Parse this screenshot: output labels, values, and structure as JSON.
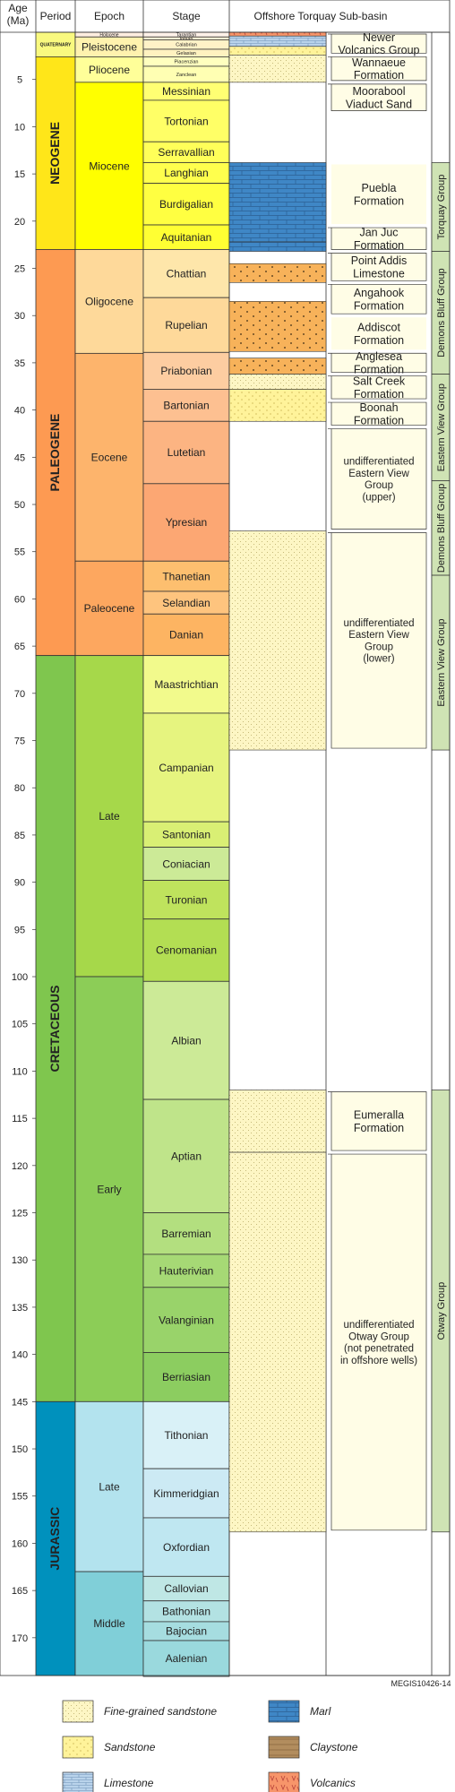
{
  "headers": {
    "age": "Age\n(Ma)",
    "period": "Period",
    "epoch": "Epoch",
    "stage": "Stage",
    "basin": "Offshore Torquay Sub-basin"
  },
  "age_ticks": [
    5,
    10,
    15,
    20,
    25,
    30,
    35,
    40,
    45,
    50,
    55,
    60,
    65,
    70,
    75,
    80,
    85,
    90,
    95,
    100,
    105,
    110,
    115,
    120,
    125,
    130,
    135,
    140,
    145,
    150,
    155,
    160,
    165,
    170
  ],
  "periods": [
    {
      "label": "QUATERNARY",
      "from": 0,
      "to": 2.6,
      "color": "#f9f97f"
    },
    {
      "label": "NEOGENE",
      "from": 2.6,
      "to": 23,
      "color": "#ffe619"
    },
    {
      "label": "PALEOGENE",
      "from": 23,
      "to": 66,
      "color": "#fd9a52"
    },
    {
      "label": "CRETACEOUS",
      "from": 66,
      "to": 145,
      "color": "#7fc64e"
    },
    {
      "label": "JURASSIC",
      "from": 145,
      "to": 174,
      "color": "#0091bd"
    }
  ],
  "epochs": [
    {
      "label": "Holocene",
      "from": 0,
      "to": 0.5,
      "color": "#feeee0"
    },
    {
      "label": "Pleistocene",
      "from": 0.5,
      "to": 2.6,
      "color": "#fff2ae"
    },
    {
      "label": "Pliocene",
      "from": 2.6,
      "to": 5.3,
      "color": "#ffff99"
    },
    {
      "label": "Miocene",
      "from": 5.3,
      "to": 23,
      "color": "#ffff00"
    },
    {
      "label": "Oligocene",
      "from": 23,
      "to": 34,
      "color": "#fed99a"
    },
    {
      "label": "Eocene",
      "from": 34,
      "to": 56,
      "color": "#fdb46c"
    },
    {
      "label": "Paleocene",
      "from": 56,
      "to": 66,
      "color": "#fda75f"
    },
    {
      "label": "Late",
      "from": 66,
      "to": 100,
      "color": "#a6d84a"
    },
    {
      "label": "Early",
      "from": 100,
      "to": 145,
      "color": "#8ccd57"
    },
    {
      "label": "Late",
      "from": 145,
      "to": 163,
      "color": "#b3e3ee"
    },
    {
      "label": "Middle",
      "from": 163,
      "to": 174,
      "color": "#80cfd8"
    }
  ],
  "stages": [
    {
      "label": "Tarantian",
      "from": 0,
      "to": 0.5,
      "color": "#fff2e9",
      "small": true
    },
    {
      "label": "Ionian",
      "from": 0.5,
      "to": 0.8,
      "color": "#fff2d3",
      "small": true
    },
    {
      "label": "Calabrian",
      "from": 0.8,
      "to": 1.8,
      "color": "#fff2c7",
      "small": true
    },
    {
      "label": "Gelasian",
      "from": 1.8,
      "to": 2.6,
      "color": "#fff2c0",
      "small": true
    },
    {
      "label": "Piacenzian",
      "from": 2.6,
      "to": 3.6,
      "color": "#ffffbf",
      "small": true
    },
    {
      "label": "Zanclean",
      "from": 3.6,
      "to": 5.3,
      "color": "#ffffb3",
      "small": true
    },
    {
      "label": "Messinian",
      "from": 5.3,
      "to": 7.2,
      "color": "#ffff73"
    },
    {
      "label": "Tortonian",
      "from": 7.2,
      "to": 11.6,
      "color": "#ffff66"
    },
    {
      "label": "Serravallian",
      "from": 11.6,
      "to": 13.8,
      "color": "#ffff59"
    },
    {
      "label": "Langhian",
      "from": 13.8,
      "to": 16,
      "color": "#ffff4d"
    },
    {
      "label": "Burdigalian",
      "from": 16,
      "to": 20.4,
      "color": "#ffff41"
    },
    {
      "label": "Aquitanian",
      "from": 20.4,
      "to": 23,
      "color": "#ffff33"
    },
    {
      "label": "Chattian",
      "from": 23,
      "to": 28.1,
      "color": "#fee6aa"
    },
    {
      "label": "Rupelian",
      "from": 28.1,
      "to": 33.9,
      "color": "#fed99a"
    },
    {
      "label": "Priabonian",
      "from": 33.9,
      "to": 37.8,
      "color": "#fdcda1"
    },
    {
      "label": "Bartonian",
      "from": 37.8,
      "to": 41.2,
      "color": "#fdc091"
    },
    {
      "label": "Lutetian",
      "from": 41.2,
      "to": 47.8,
      "color": "#fcb482"
    },
    {
      "label": "Ypresian",
      "from": 47.8,
      "to": 56,
      "color": "#fca773"
    },
    {
      "label": "Thanetian",
      "from": 56,
      "to": 59.2,
      "color": "#fdbf6f"
    },
    {
      "label": "Selandian",
      "from": 59.2,
      "to": 61.6,
      "color": "#fec47e"
    },
    {
      "label": "Danian",
      "from": 61.6,
      "to": 66,
      "color": "#fdb462"
    },
    {
      "label": "Maastrichtian",
      "from": 66,
      "to": 72.1,
      "color": "#f2fa8c"
    },
    {
      "label": "Campanian",
      "from": 72.1,
      "to": 83.6,
      "color": "#e6f47f"
    },
    {
      "label": "Santonian",
      "from": 83.6,
      "to": 86.3,
      "color": "#d9ef74"
    },
    {
      "label": "Coniacian",
      "from": 86.3,
      "to": 89.8,
      "color": "#ccea97"
    },
    {
      "label": "Turonian",
      "from": 89.8,
      "to": 93.9,
      "color": "#bfe35d"
    },
    {
      "label": "Cenomanian",
      "from": 93.9,
      "to": 100.5,
      "color": "#b3de53"
    },
    {
      "label": "Albian",
      "from": 100.5,
      "to": 113,
      "color": "#ccea97"
    },
    {
      "label": "Aptian",
      "from": 113,
      "to": 125,
      "color": "#bfe48a"
    },
    {
      "label": "Barremian",
      "from": 125,
      "to": 129.4,
      "color": "#b3df7f"
    },
    {
      "label": "Hauterivian",
      "from": 129.4,
      "to": 132.9,
      "color": "#a6d975"
    },
    {
      "label": "Valanginian",
      "from": 132.9,
      "to": 139.8,
      "color": "#99d36a"
    },
    {
      "label": "Berriasian",
      "from": 139.8,
      "to": 145,
      "color": "#8ccd60"
    },
    {
      "label": "Tithonian",
      "from": 145,
      "to": 152.1,
      "color": "#d9f1f7"
    },
    {
      "label": "Kimmeridgian",
      "from": 152.1,
      "to": 157.3,
      "color": "#cceaf4"
    },
    {
      "label": "Oxfordian",
      "from": 157.3,
      "to": 163.5,
      "color": "#bfe7f1"
    },
    {
      "label": "Callovian",
      "from": 163.5,
      "to": 166.1,
      "color": "#bfe7e5"
    },
    {
      "label": "Bathonian",
      "from": 166.1,
      "to": 168.3,
      "color": "#b3e2e3"
    },
    {
      "label": "Bajocian",
      "from": 168.3,
      "to": 170.3,
      "color": "#a6dde0"
    },
    {
      "label": "Aalenian",
      "from": 170.3,
      "to": 174.1,
      "color": "#9ad9dd"
    }
  ],
  "lithology": [
    {
      "from": 0,
      "to": 0.4,
      "type": "volcanics"
    },
    {
      "from": 0.4,
      "to": 1.5,
      "type": "limestone"
    },
    {
      "from": 1.5,
      "to": 2.4,
      "type": "sandstone"
    },
    {
      "from": 2.4,
      "to": 5.3,
      "type": "fine-sandstone"
    },
    {
      "from": 13.8,
      "to": 22.2,
      "type": "marl"
    },
    {
      "from": 22.2,
      "to": 23.2,
      "type": "marl"
    },
    {
      "from": 24.5,
      "to": 26.5,
      "type": "sandstone-dots"
    },
    {
      "from": 28.5,
      "to": 33.8,
      "type": "sandstone-dots"
    },
    {
      "from": 34.5,
      "to": 36.2,
      "type": "sandstone-dots"
    },
    {
      "from": 36.2,
      "to": 37.8,
      "type": "fine-sandstone"
    },
    {
      "from": 37.8,
      "to": 41.2,
      "type": "sandstone"
    },
    {
      "from": 52.8,
      "to": 76,
      "type": "fine-sandstone"
    },
    {
      "from": 112,
      "to": 118.6,
      "type": "fine-sandstone"
    },
    {
      "from": 118.6,
      "to": 158.8,
      "type": "fine-sandstone"
    }
  ],
  "formations": [
    {
      "label": "Newer\nVolcanics Group",
      "from": 0,
      "to": 2.4,
      "boxed": true
    },
    {
      "label": "Wannaeue\nFormation",
      "from": 2.4,
      "to": 5.3,
      "boxed": true
    },
    {
      "label": "Moorabool\nViaduct Sand",
      "from": 5.3,
      "to": 8.5,
      "boxed": true
    },
    {
      "label": "Puebla\nFormation",
      "from": 13.8,
      "to": 20.5,
      "boxed": false
    },
    {
      "label": "Jan Juc\nFormation",
      "from": 20.5,
      "to": 23.2,
      "boxed": true
    },
    {
      "label": "Point Addis\nLimestone",
      "from": 23.2,
      "to": 26.5,
      "boxed": true
    },
    {
      "label": "Angahook\nFormation",
      "from": 26.5,
      "to": 30,
      "boxed": true
    },
    {
      "label": "Addiscot\nFormation",
      "from": 30,
      "to": 33.8,
      "boxed": false
    },
    {
      "label": "Anglesea\nFormation",
      "from": 33.8,
      "to": 36.2,
      "boxed": true
    },
    {
      "label": "Salt Creek\nFormation",
      "from": 36.2,
      "to": 39,
      "boxed": true
    },
    {
      "label": "Boonah\nFormation",
      "from": 39,
      "to": 41.8,
      "boxed": true
    },
    {
      "label": "undifferentiated\nEastern View\nGroup\n(upper)",
      "from": 41.8,
      "to": 52.8,
      "boxed": true
    },
    {
      "label": "undifferentiated\nEastern View\nGroup\n(lower)",
      "from": 52.8,
      "to": 76,
      "boxed": true
    },
    {
      "label": "Eumeralla\nFormation",
      "from": 112,
      "to": 118.6,
      "boxed": true
    },
    {
      "label": "undifferentiated\nOtway Group\n(not penetrated\nin offshore wells)",
      "from": 118.6,
      "to": 158.8,
      "boxed": true
    }
  ],
  "groups": [
    {
      "label": "Torquay Group",
      "from": 13.8,
      "to": 23.2
    },
    {
      "label": "Demons Bluff Group",
      "from": 23.2,
      "to": 36.2
    },
    {
      "label": "Eastern View Group",
      "from": 36.2,
      "to": 47.5
    },
    {
      "label": "Demons Bluff Group",
      "from": 47.5,
      "to": 57.5
    },
    {
      "label": "Eastern View Group",
      "from": 57.5,
      "to": 76
    },
    {
      "label": "Otway Group",
      "from": 112,
      "to": 158.8
    }
  ],
  "legend": [
    {
      "label": "Fine-grained sandstone",
      "type": "fine-sandstone"
    },
    {
      "label": "Marl",
      "type": "marl"
    },
    {
      "label": "Sandstone",
      "type": "sandstone"
    },
    {
      "label": "Claystone",
      "type": "claystone"
    },
    {
      "label": "Limestone",
      "type": "limestone"
    },
    {
      "label": "Volcanics",
      "type": "volcanics"
    }
  ],
  "fill_colors": {
    "fine-sandstone": "#fdf6c4",
    "sandstone": "#fff39a",
    "sandstone-dots": "#f7b25a",
    "marl": "#3f87c6",
    "limestone": "#b9d3eb",
    "claystone": "#b28d5e",
    "volcanics": "#f7956a"
  },
  "credit": "MEGIS10426-14"
}
